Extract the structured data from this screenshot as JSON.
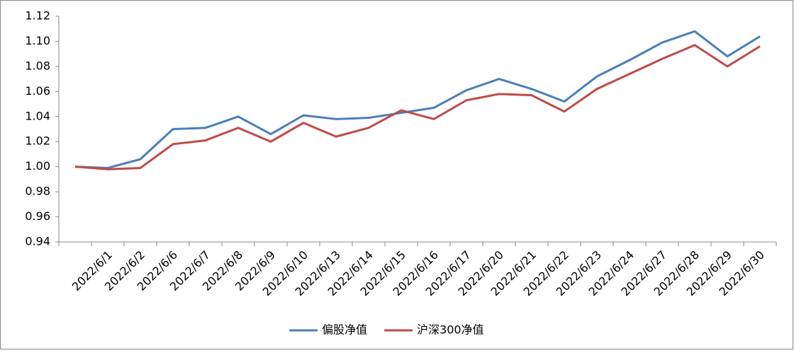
{
  "chart_data": {
    "type": "line",
    "categories": [
      null,
      "2022/6/1",
      "2022/6/2",
      "2022/6/6",
      "2022/6/7",
      "2022/6/8",
      "2022/6/9",
      "2022/6/10",
      "2022/6/13",
      "2022/6/14",
      "2022/6/15",
      "2022/6/16",
      "2022/6/17",
      "2022/6/20",
      "2022/6/21",
      "2022/6/22",
      "2022/6/23",
      "2022/6/24",
      "2022/6/27",
      "2022/6/28",
      "2022/6/29",
      "2022/6/30"
    ],
    "series": [
      {
        "name": "偏股净值",
        "color": "#4a7ebb",
        "values": [
          1.0,
          0.999,
          1.006,
          1.03,
          1.031,
          1.04,
          1.026,
          1.041,
          1.038,
          1.039,
          1.043,
          1.047,
          1.061,
          1.07,
          1.062,
          1.052,
          1.072,
          1.085,
          1.099,
          1.108,
          1.088,
          1.104
        ]
      },
      {
        "name": "沪深300净值",
        "color": "#be4b48",
        "values": [
          1.0,
          0.998,
          0.999,
          1.018,
          1.021,
          1.031,
          1.02,
          1.035,
          1.024,
          1.031,
          1.045,
          1.038,
          1.053,
          1.058,
          1.057,
          1.044,
          1.062,
          1.074,
          1.086,
          1.097,
          1.08,
          1.096
        ]
      }
    ],
    "ylim": [
      0.94,
      1.12
    ],
    "yticks": [
      {
        "value": 0.94,
        "label": "0.94"
      },
      {
        "value": 0.96,
        "label": "0.96"
      },
      {
        "value": 0.98,
        "label": "0.98"
      },
      {
        "value": 1.0,
        "label": "1.00"
      },
      {
        "value": 1.02,
        "label": "1.02"
      },
      {
        "value": 1.04,
        "label": "1.04"
      },
      {
        "value": 1.06,
        "label": "1.06"
      },
      {
        "value": 1.08,
        "label": "1.08"
      },
      {
        "value": 1.1,
        "label": "1.10"
      },
      {
        "value": 1.12,
        "label": "1.12"
      }
    ],
    "legend": "bottom"
  }
}
